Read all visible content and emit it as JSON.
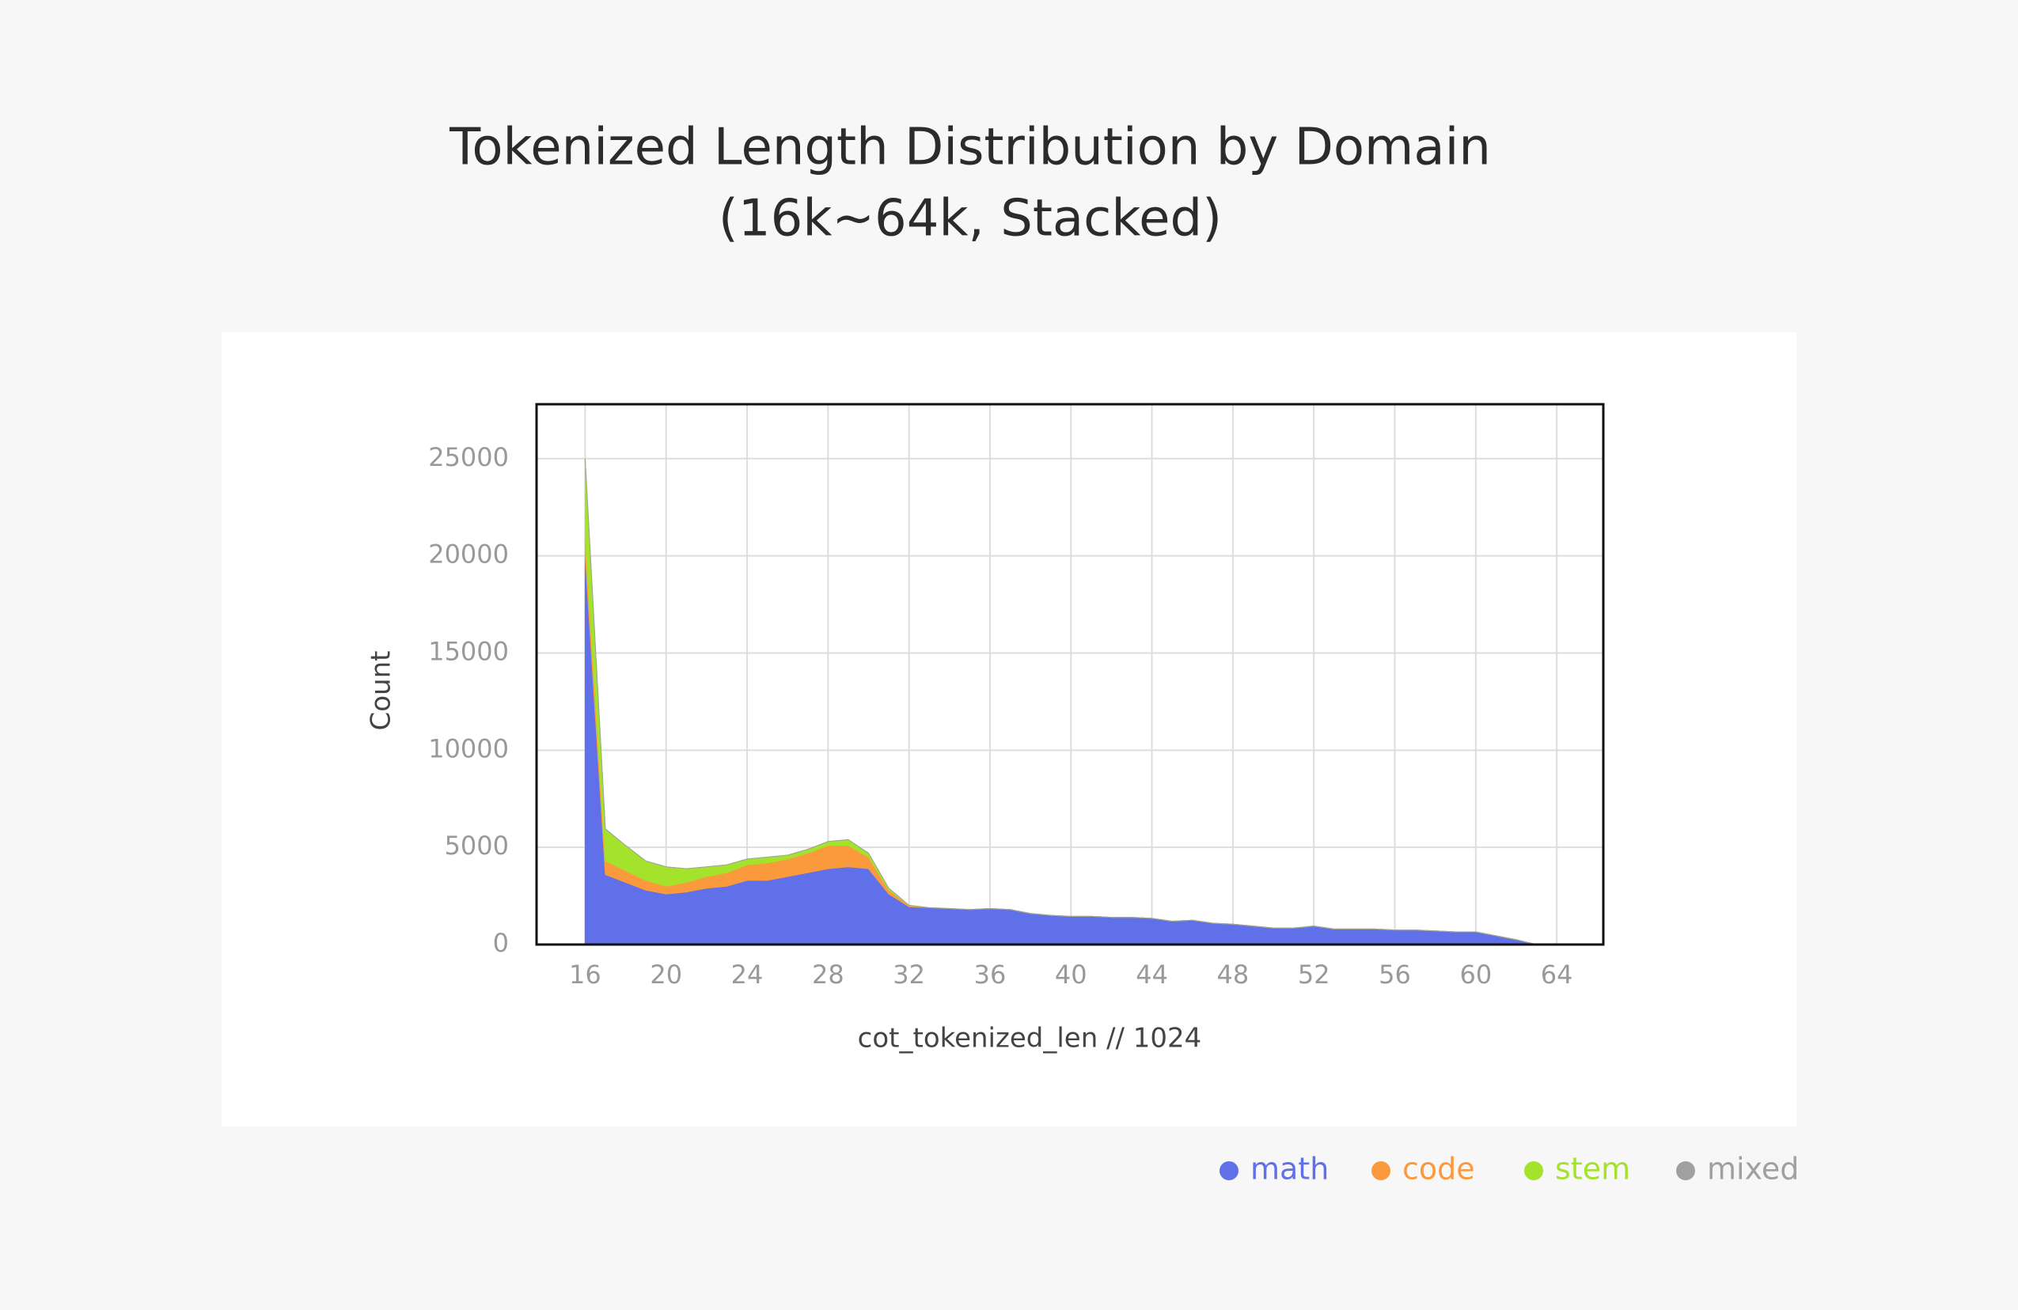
{
  "chart_data": {
    "type": "stacked_area",
    "title": "Tokenized Length Distribution by Domain",
    "subtitle": "(16k~64k, Stacked)",
    "x_label": "cot_tokenized_len // 1024",
    "y_label": "Count",
    "x": [
      16,
      17,
      18,
      19,
      20,
      21,
      22,
      23,
      24,
      25,
      26,
      27,
      28,
      29,
      30,
      31,
      32,
      33,
      34,
      35,
      36,
      37,
      38,
      39,
      40,
      41,
      42,
      43,
      44,
      45,
      46,
      47,
      48,
      49,
      50,
      51,
      52,
      53,
      54,
      55,
      56,
      57,
      58,
      59,
      60,
      61,
      62,
      63
    ],
    "series": [
      {
        "name": "math",
        "color": "#6070e8",
        "values": [
          20000,
          3600,
          3200,
          2800,
          2600,
          2700,
          2900,
          3000,
          3300,
          3300,
          3500,
          3700,
          3900,
          4000,
          3900,
          2600,
          1950,
          1900,
          1850,
          1800,
          1850,
          1800,
          1600,
          1500,
          1450,
          1450,
          1400,
          1400,
          1350,
          1200,
          1250,
          1100,
          1050,
          950,
          850,
          850,
          950,
          800,
          800,
          800,
          750,
          750,
          700,
          650,
          650,
          450,
          250,
          0
        ]
      },
      {
        "name": "code",
        "color": "#fb9a3c",
        "values": [
          1000,
          700,
          600,
          500,
          400,
          500,
          600,
          700,
          800,
          900,
          900,
          1000,
          1200,
          1100,
          600,
          200,
          50,
          0,
          0,
          0,
          0,
          0,
          0,
          0,
          0,
          0,
          0,
          0,
          0,
          0,
          0,
          0,
          0,
          0,
          0,
          0,
          0,
          0,
          0,
          0,
          0,
          0,
          0,
          0,
          0,
          0,
          0,
          0
        ]
      },
      {
        "name": "stem",
        "color": "#a4e22c",
        "values": [
          4000,
          1650,
          1300,
          1000,
          1000,
          700,
          500,
          400,
          300,
          300,
          200,
          200,
          200,
          300,
          200,
          100,
          20,
          0,
          0,
          0,
          0,
          0,
          0,
          0,
          0,
          0,
          0,
          0,
          0,
          0,
          0,
          0,
          0,
          0,
          0,
          0,
          0,
          0,
          0,
          0,
          0,
          0,
          0,
          0,
          0,
          0,
          0,
          0
        ]
      },
      {
        "name": "mixed",
        "color": "#a0a0a0",
        "values": [
          0,
          0,
          0,
          0,
          0,
          0,
          0,
          0,
          0,
          0,
          0,
          0,
          0,
          0,
          0,
          0,
          0,
          0,
          0,
          0,
          0,
          0,
          0,
          0,
          0,
          0,
          0,
          0,
          0,
          0,
          0,
          0,
          0,
          0,
          0,
          0,
          0,
          0,
          0,
          0,
          0,
          0,
          0,
          0,
          0,
          0,
          0,
          0
        ]
      }
    ],
    "xlim": [
      13.6,
      66.3
    ],
    "ylim": [
      0,
      27800
    ],
    "xticks": [
      16,
      20,
      24,
      28,
      32,
      36,
      40,
      44,
      48,
      52,
      56,
      60,
      64
    ],
    "yticks": [
      0,
      5000,
      10000,
      15000,
      20000,
      25000
    ],
    "grid": true
  }
}
